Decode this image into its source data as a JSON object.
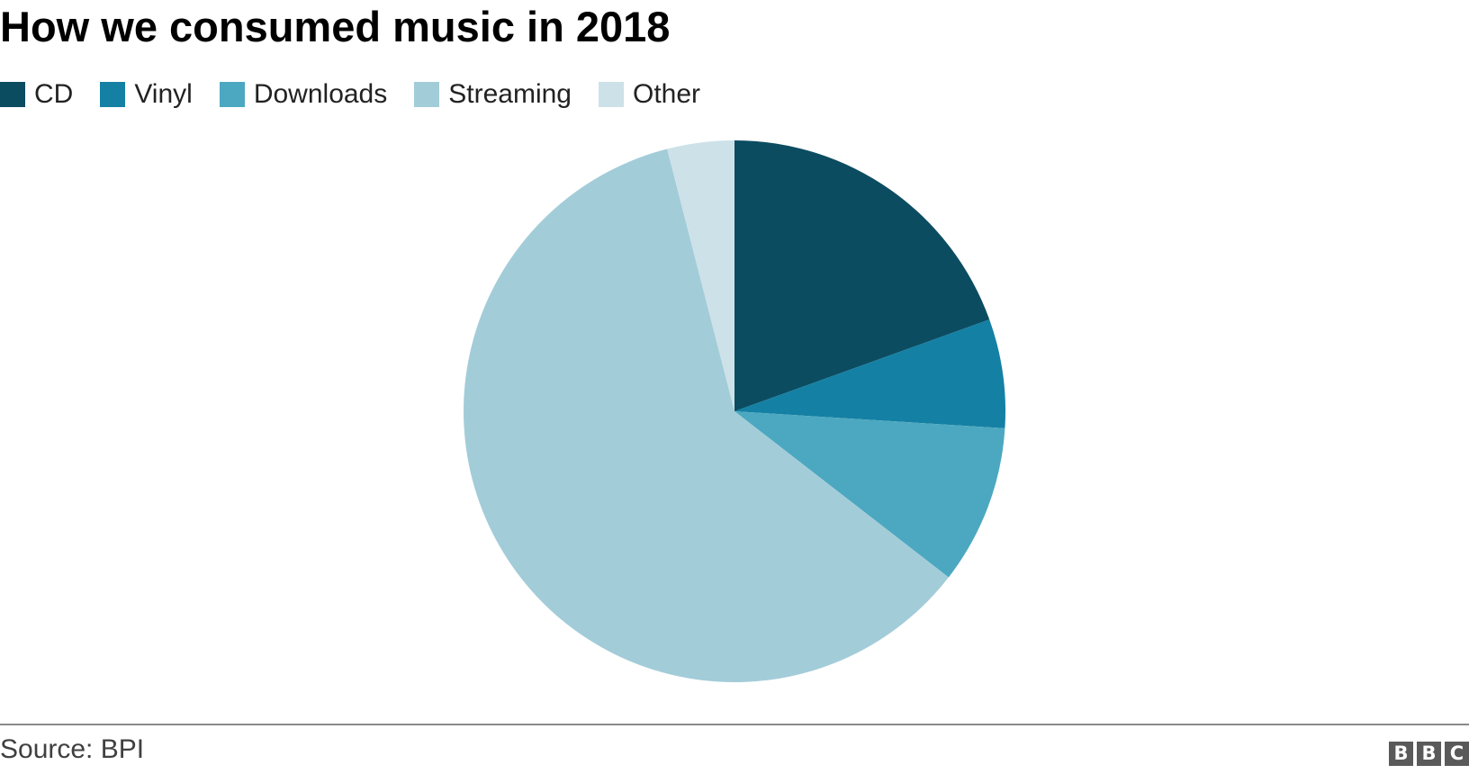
{
  "title": "How we consumed music in 2018",
  "source": "Source: BPI",
  "logo": [
    "B",
    "B",
    "C"
  ],
  "chart_data": {
    "type": "pie",
    "title": "How we consumed music in 2018",
    "legend_position": "top-left",
    "start_angle": "12 o'clock, clockwise",
    "slices": [
      {
        "label": "CD",
        "value": 19.5,
        "color": "#0b4c61"
      },
      {
        "label": "Vinyl",
        "value": 6.5,
        "color": "#1480a4"
      },
      {
        "label": "Downloads",
        "value": 9.5,
        "color": "#4ca8c0"
      },
      {
        "label": "Streaming",
        "value": 60.5,
        "color": "#a3ccd9"
      },
      {
        "label": "Other",
        "value": 4.0,
        "color": "#cde1e8"
      }
    ]
  }
}
